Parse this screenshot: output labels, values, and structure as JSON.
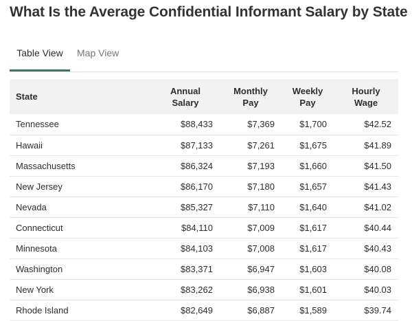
{
  "title": "What Is the Average Confidential Informant Salary by State",
  "tabs": [
    {
      "label": "Table View",
      "active": true
    },
    {
      "label": "Map View",
      "active": false
    }
  ],
  "table": {
    "headers": {
      "state": "State",
      "annual": [
        "Annual",
        "Salary"
      ],
      "monthly": [
        "Monthly",
        "Pay"
      ],
      "weekly": [
        "Weekly",
        "Pay"
      ],
      "hourly": [
        "Hourly",
        "Wage"
      ]
    },
    "rows": [
      {
        "state": "Tennessee",
        "annual": "$88,433",
        "monthly": "$7,369",
        "weekly": "$1,700",
        "hourly": "$42.52"
      },
      {
        "state": "Hawaii",
        "annual": "$87,133",
        "monthly": "$7,261",
        "weekly": "$1,675",
        "hourly": "$41.89"
      },
      {
        "state": "Massachusetts",
        "annual": "$86,324",
        "monthly": "$7,193",
        "weekly": "$1,660",
        "hourly": "$41.50"
      },
      {
        "state": "New Jersey",
        "annual": "$86,170",
        "monthly": "$7,180",
        "weekly": "$1,657",
        "hourly": "$41.43"
      },
      {
        "state": "Nevada",
        "annual": "$85,327",
        "monthly": "$7,110",
        "weekly": "$1,640",
        "hourly": "$41.02"
      },
      {
        "state": "Connecticut",
        "annual": "$84,110",
        "monthly": "$7,009",
        "weekly": "$1,617",
        "hourly": "$40.44"
      },
      {
        "state": "Minnesota",
        "annual": "$84,103",
        "monthly": "$7,008",
        "weekly": "$1,617",
        "hourly": "$40.43"
      },
      {
        "state": "Washington",
        "annual": "$83,371",
        "monthly": "$6,947",
        "weekly": "$1,603",
        "hourly": "$40.08"
      },
      {
        "state": "New York",
        "annual": "$83,262",
        "monthly": "$6,938",
        "weekly": "$1,601",
        "hourly": "$40.03"
      },
      {
        "state": "Rhode Island",
        "annual": "$82,649",
        "monthly": "$6,887",
        "weekly": "$1,589",
        "hourly": "$39.74"
      }
    ]
  },
  "colors": {
    "accent": "#2e7d5b",
    "header_bg": "#f2f2f2",
    "row_border": "#e6e6e6",
    "inactive_tab": "#767676"
  }
}
